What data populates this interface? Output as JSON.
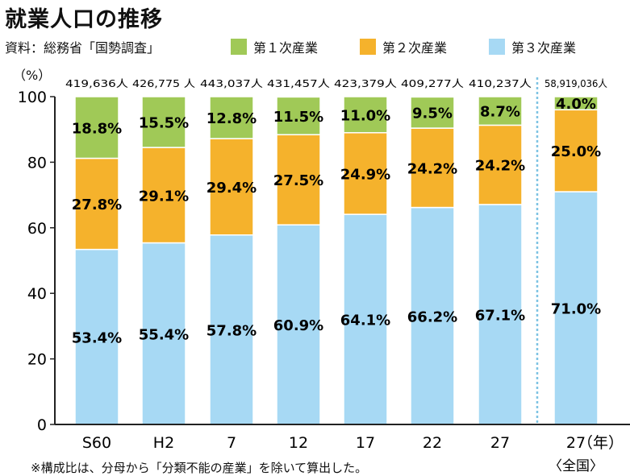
{
  "title": "就業人口の推移",
  "source": "資料：総務省「国勢調査」",
  "unit_label": "（%）",
  "year_unit": "（年）",
  "national_label": "〈全国〉",
  "note": "※構成比は、分母から「分類不能の産業」を除いて算出した。",
  "colors": {
    "primary": "#a0c957",
    "secondary": "#f5b22c",
    "tertiary": "#a7d9f4",
    "divider": "#7ec3e3"
  },
  "chart_data": {
    "type": "bar",
    "stacked": true,
    "categories": [
      "S60",
      "H2",
      "7",
      "12",
      "17",
      "22",
      "27",
      "27"
    ],
    "totals": [
      "419,636人",
      "426,775 人",
      "443,037人",
      "431,457人",
      "423,379人",
      "409,277人",
      "410,237人",
      "58,919,036人"
    ],
    "series": [
      {
        "name": "第３次産業",
        "values": [
          53.4,
          55.4,
          57.8,
          60.9,
          64.1,
          66.2,
          67.1,
          71.0
        ],
        "labels": [
          "53.4%",
          "55.4%",
          "57.8%",
          "60.9%",
          "64.1%",
          "66.2%",
          "67.1%",
          "71.0%"
        ]
      },
      {
        "name": "第２次産業",
        "values": [
          27.8,
          29.1,
          29.4,
          27.5,
          24.9,
          24.2,
          24.2,
          25.0
        ],
        "labels": [
          "27.8%",
          "29.1%",
          "29.4%",
          "27.5%",
          "24.9%",
          "24.2%",
          "24.2%",
          "25.0%"
        ]
      },
      {
        "name": "第１次産業",
        "values": [
          18.8,
          15.5,
          12.8,
          11.5,
          11.0,
          9.5,
          8.7,
          4.0
        ],
        "labels": [
          "18.8%",
          "15.5%",
          "12.8%",
          "11.5%",
          "11.0%",
          "9.5%",
          "8.7%",
          "4.0%"
        ]
      }
    ],
    "legend": [
      {
        "name": "第１次産業",
        "color": "#a0c957"
      },
      {
        "name": "第２次産業",
        "color": "#f5b22c"
      },
      {
        "name": "第３次産業",
        "color": "#a7d9f4"
      }
    ],
    "yticks": [
      "0",
      "20",
      "40",
      "60",
      "80",
      "100"
    ],
    "ylim": [
      0,
      100
    ],
    "legend_position": "top"
  }
}
